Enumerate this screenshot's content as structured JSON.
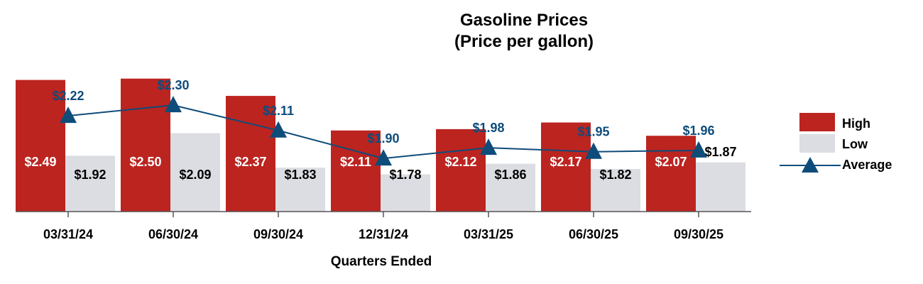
{
  "chart_data": {
    "type": "bar",
    "title": "Gasoline Prices",
    "subtitle": "(Price per gallon)",
    "xlabel": "Quarters Ended",
    "ylabel": "",
    "ylim": [
      1.5,
      2.6
    ],
    "categories": [
      "03/31/24",
      "06/30/24",
      "09/30/24",
      "12/31/24",
      "03/31/25",
      "06/30/25",
      "09/30/25"
    ],
    "series": [
      {
        "name": "High",
        "type": "bar",
        "color": "#BC2420",
        "values": [
          2.49,
          2.5,
          2.37,
          2.11,
          2.12,
          2.17,
          2.07
        ],
        "labels": [
          "$2.49",
          "$2.50",
          "$2.37",
          "$2.11",
          "$2.12",
          "$2.17",
          "$2.07"
        ]
      },
      {
        "name": "Low",
        "type": "bar",
        "color": "#DCDDE2",
        "values": [
          1.92,
          2.09,
          1.83,
          1.78,
          1.86,
          1.82,
          1.87
        ],
        "labels": [
          "$1.92",
          "$2.09",
          "$1.83",
          "$1.78",
          "$1.86",
          "$1.82",
          "$1.87"
        ]
      },
      {
        "name": "Average",
        "type": "line",
        "color": "#0E4C7A",
        "values": [
          2.22,
          2.3,
          2.11,
          1.9,
          1.98,
          1.95,
          1.96
        ],
        "labels": [
          "$2.22",
          "$2.30",
          "$2.11",
          "$1.90",
          "$1.98",
          "$1.95",
          "$1.96"
        ]
      }
    ],
    "legend": "right",
    "grid": false
  }
}
